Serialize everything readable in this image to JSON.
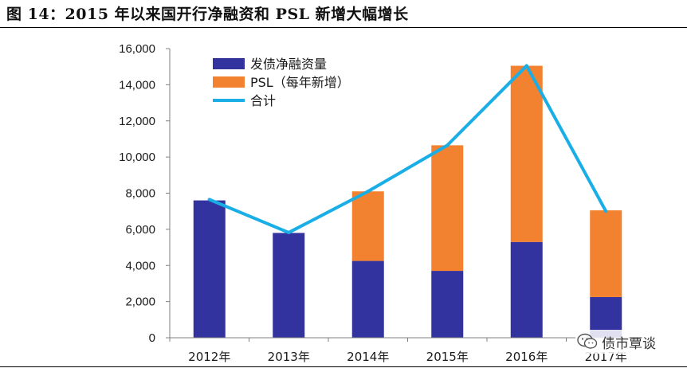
{
  "figure": {
    "title": "图 14：2015 年以来国开行净融资和 PSL 新增大幅增长"
  },
  "watermark": {
    "text": "债市覃谈",
    "icon": "wechat-icon"
  },
  "colors": {
    "bond": "#3333a0",
    "psl": "#f28230",
    "total": "#1aaee6",
    "axis": "#808080",
    "text": "#1a1a1a"
  },
  "chart_data": {
    "type": "bar",
    "stacked": true,
    "categories": [
      "2012年",
      "2013年",
      "2014年",
      "2015年",
      "2016年",
      "2017年"
    ],
    "series": [
      {
        "name": "发债净融资量",
        "type": "bar",
        "values": [
          7600,
          5800,
          4250,
          3700,
          5300,
          2250
        ]
      },
      {
        "name": "PSL（每年新增）",
        "type": "bar",
        "values": [
          0,
          0,
          3850,
          6950,
          9750,
          4800
        ]
      },
      {
        "name": "合计",
        "type": "line",
        "values": [
          7650,
          5820,
          8100,
          10650,
          15050,
          7000
        ]
      }
    ],
    "ylim": [
      0,
      16000
    ],
    "yticks": [
      "0",
      "2,000",
      "4,000",
      "6,000",
      "8,000",
      "10,000",
      "12,000",
      "14,000",
      "16,000"
    ],
    "legend_position": "top-left",
    "grid": false,
    "xlabel": "",
    "ylabel": ""
  }
}
